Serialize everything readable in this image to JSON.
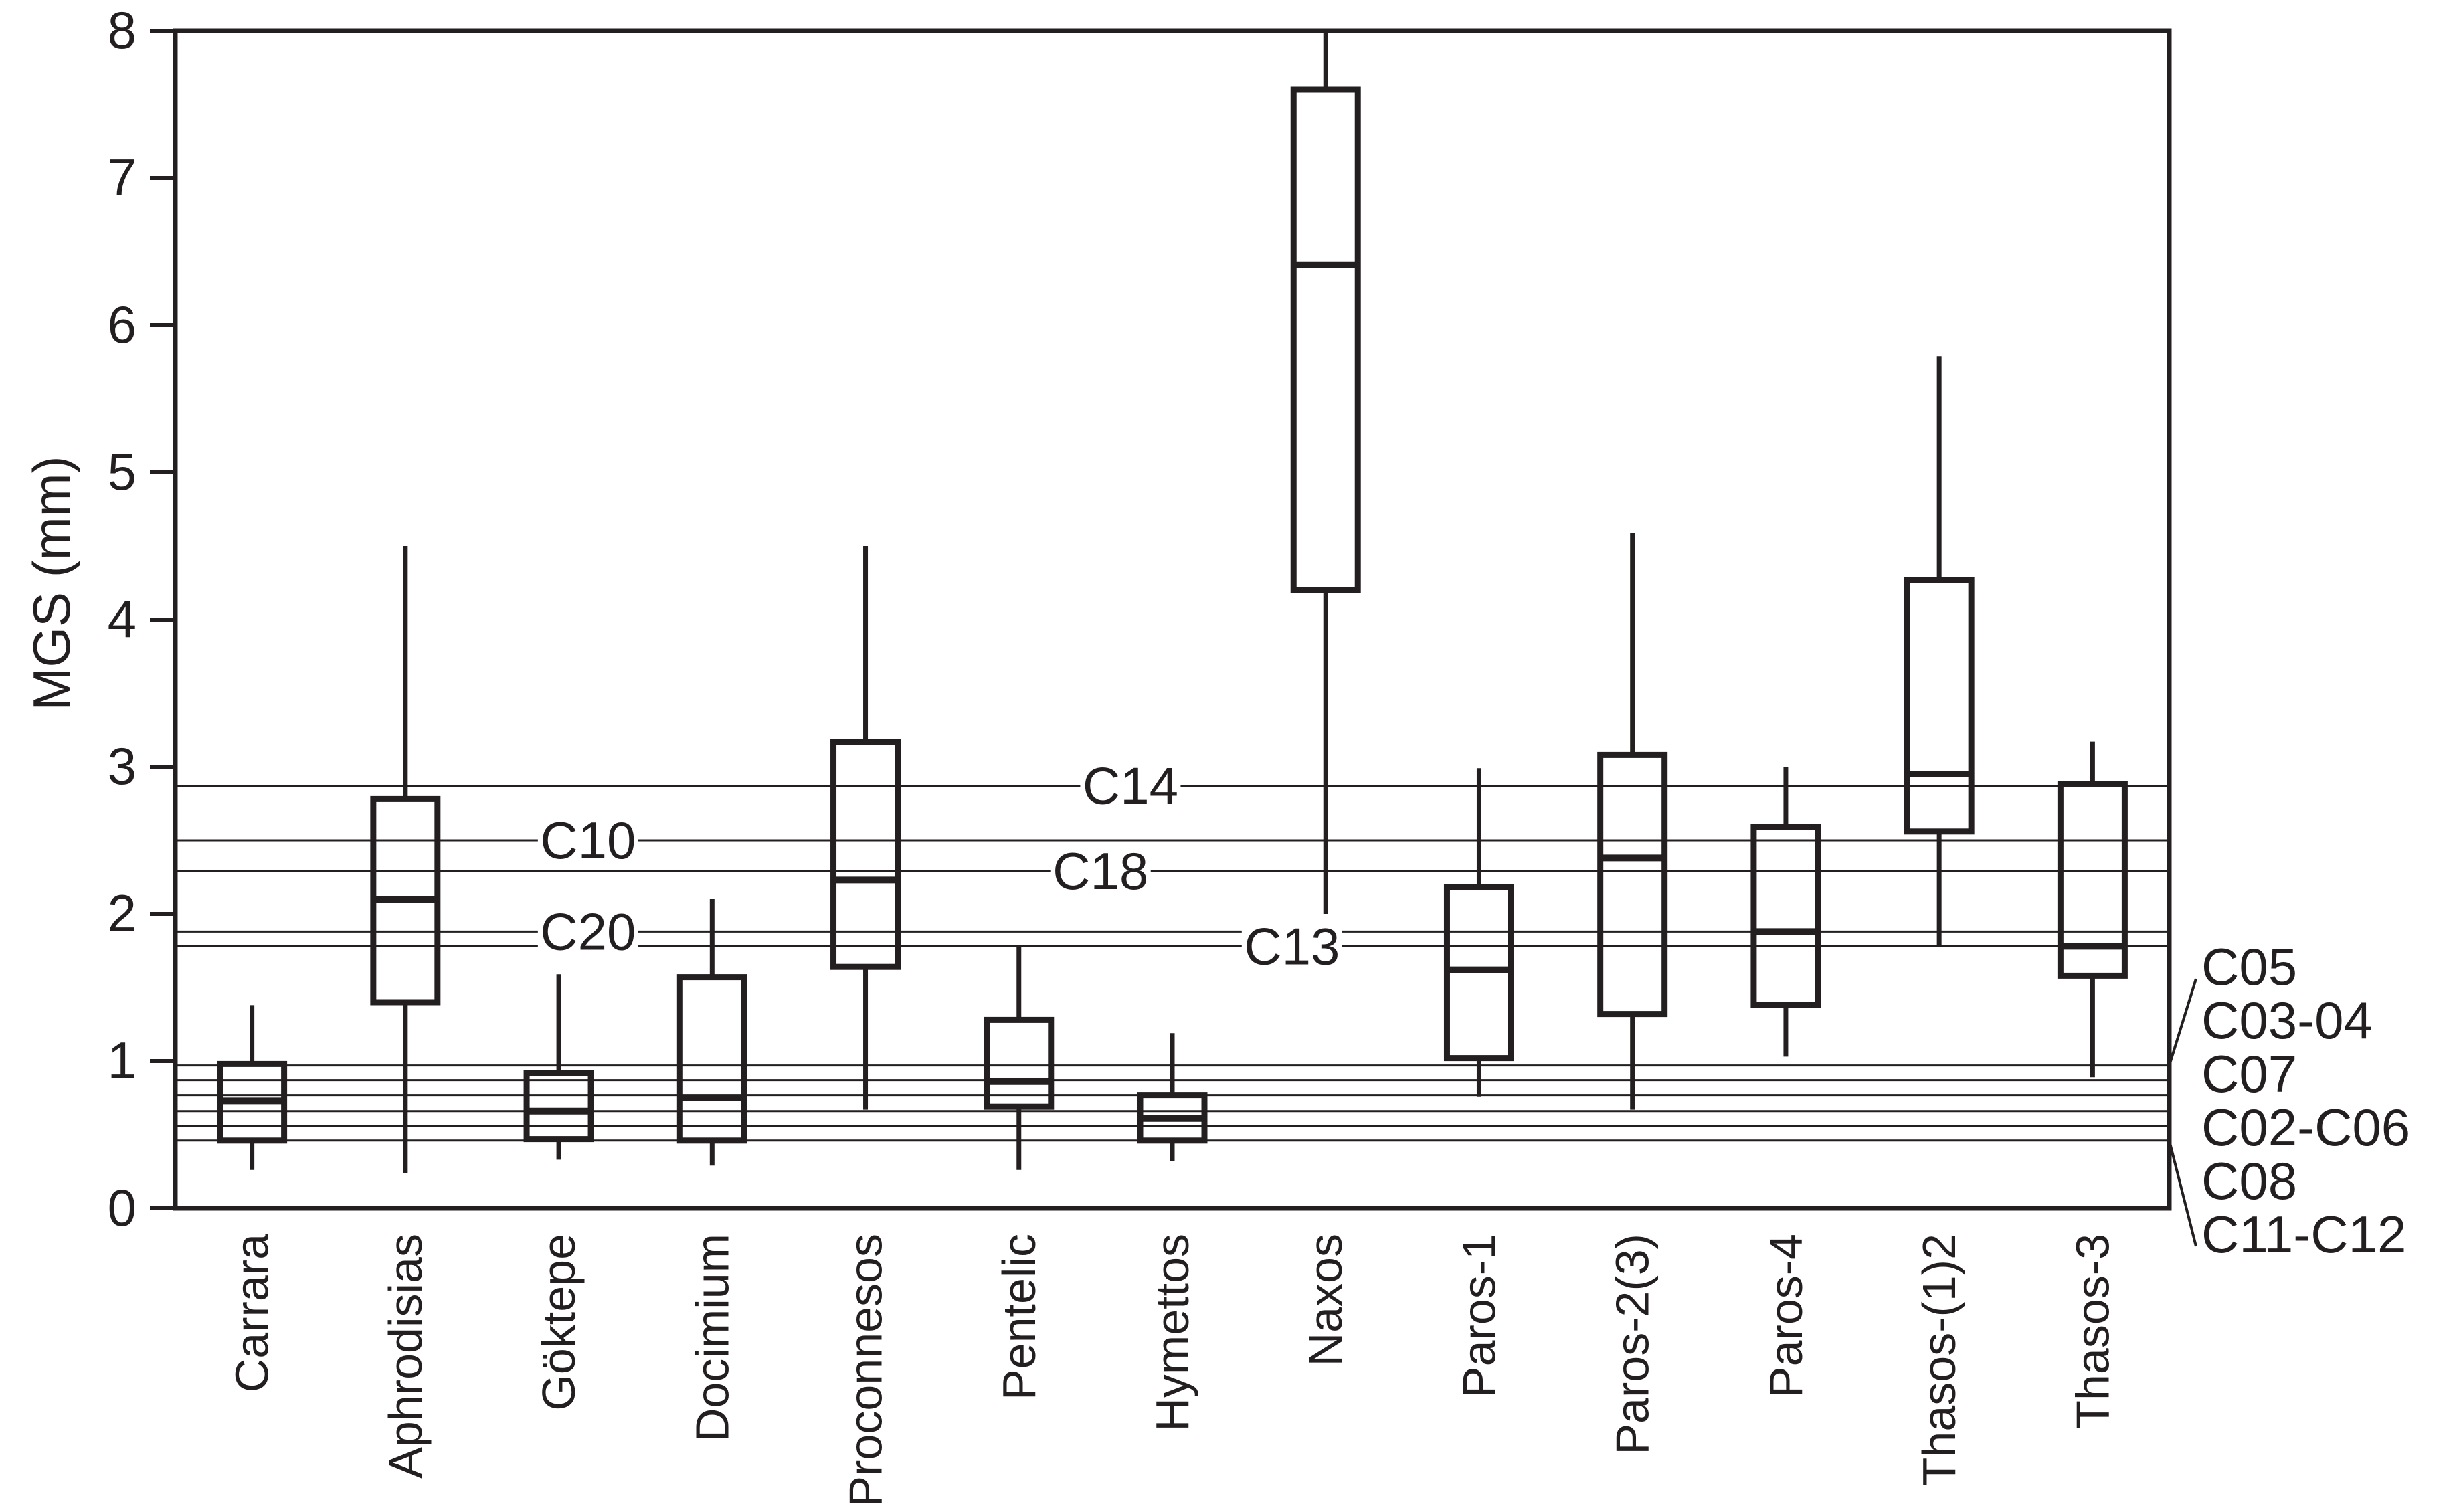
{
  "figure": {
    "background": "#ffffff",
    "ink_color": "#231f20"
  },
  "chart_data": {
    "type": "box",
    "title": "",
    "xlabel": "",
    "ylabel": "MGS (mm)",
    "ylim": [
      0,
      8
    ],
    "yticks": [
      0,
      1,
      2,
      3,
      4,
      5,
      6,
      7,
      8
    ],
    "grid": false,
    "legend": "none",
    "categories": [
      "Carrara",
      "Aphrodisias",
      "Göktepe",
      "Docimium",
      "Proconnesos",
      "Pentelic",
      "Hymettos",
      "Naxos",
      "Paros-1",
      "Paros-2(3)",
      "Paros-4",
      "Thasos-(1)2",
      "Thasos-3"
    ],
    "boxes": [
      {
        "category": "Carrara",
        "whisker_low": 0.26,
        "q1": 0.46,
        "median": 0.73,
        "q3": 0.98,
        "whisker_high": 1.38
      },
      {
        "category": "Aphrodisias",
        "whisker_low": 0.24,
        "q1": 1.4,
        "median": 2.1,
        "q3": 2.78,
        "whisker_high": 4.5
      },
      {
        "category": "Göktepe",
        "whisker_low": 0.33,
        "q1": 0.47,
        "median": 0.66,
        "q3": 0.92,
        "whisker_high": 1.59
      },
      {
        "category": "Docimium",
        "whisker_low": 0.29,
        "q1": 0.46,
        "median": 0.75,
        "q3": 1.57,
        "whisker_high": 2.1
      },
      {
        "category": "Proconnesos",
        "whisker_low": 0.67,
        "q1": 1.64,
        "median": 2.23,
        "q3": 3.17,
        "whisker_high": 4.5
      },
      {
        "category": "Pentelic",
        "whisker_low": 0.26,
        "q1": 0.69,
        "median": 0.86,
        "q3": 1.28,
        "whisker_high": 1.78
      },
      {
        "category": "Hymettos",
        "whisker_low": 0.32,
        "q1": 0.46,
        "median": 0.61,
        "q3": 0.77,
        "whisker_high": 1.19
      },
      {
        "category": "Naxos",
        "whisker_low": 2.0,
        "q1": 4.2,
        "median": 6.41,
        "q3": 7.6,
        "whisker_high": 8.0
      },
      {
        "category": "Paros-1",
        "whisker_low": 0.76,
        "q1": 1.02,
        "median": 1.62,
        "q3": 2.18,
        "whisker_high": 2.99
      },
      {
        "category": "Paros-2(3)",
        "whisker_low": 0.67,
        "q1": 1.32,
        "median": 2.38,
        "q3": 3.08,
        "whisker_high": 4.59
      },
      {
        "category": "Paros-4",
        "whisker_low": 1.03,
        "q1": 1.38,
        "median": 1.88,
        "q3": 2.59,
        "whisker_high": 3.0
      },
      {
        "category": "Thasos-(1)2",
        "whisker_low": 1.78,
        "q1": 2.56,
        "median": 2.95,
        "q3": 4.27,
        "whisker_high": 5.79
      },
      {
        "category": "Thasos-3",
        "whisker_low": 0.89,
        "q1": 1.58,
        "median": 1.78,
        "q3": 2.88,
        "whisker_high": 3.17
      }
    ],
    "reference_lines": [
      {
        "label": "C14",
        "value": 2.87,
        "label_side": "inside",
        "label_x_frac": 0.479
      },
      {
        "label": "C10",
        "value": 2.5,
        "label_side": "inside",
        "label_x_frac": 0.207
      },
      {
        "label": "C18",
        "value": 2.29,
        "label_side": "inside",
        "label_x_frac": 0.464
      },
      {
        "label": "C20",
        "value": 1.88,
        "label_side": "inside",
        "label_x_frac": 0.207
      },
      {
        "label": "C13",
        "value": 1.78,
        "label_side": "inside",
        "label_x_frac": 0.56
      },
      {
        "label": "C05",
        "value": 0.97,
        "label_side": "right"
      },
      {
        "label": "C03-04",
        "value": 0.87,
        "label_side": "right"
      },
      {
        "label": "C07",
        "value": 0.77,
        "label_side": "right"
      },
      {
        "label": "C02-C06",
        "value": 0.66,
        "label_side": "right"
      },
      {
        "label": "C08",
        "value": 0.56,
        "label_side": "right"
      },
      {
        "label": "C11-C12",
        "value": 0.46,
        "label_side": "right"
      }
    ]
  }
}
